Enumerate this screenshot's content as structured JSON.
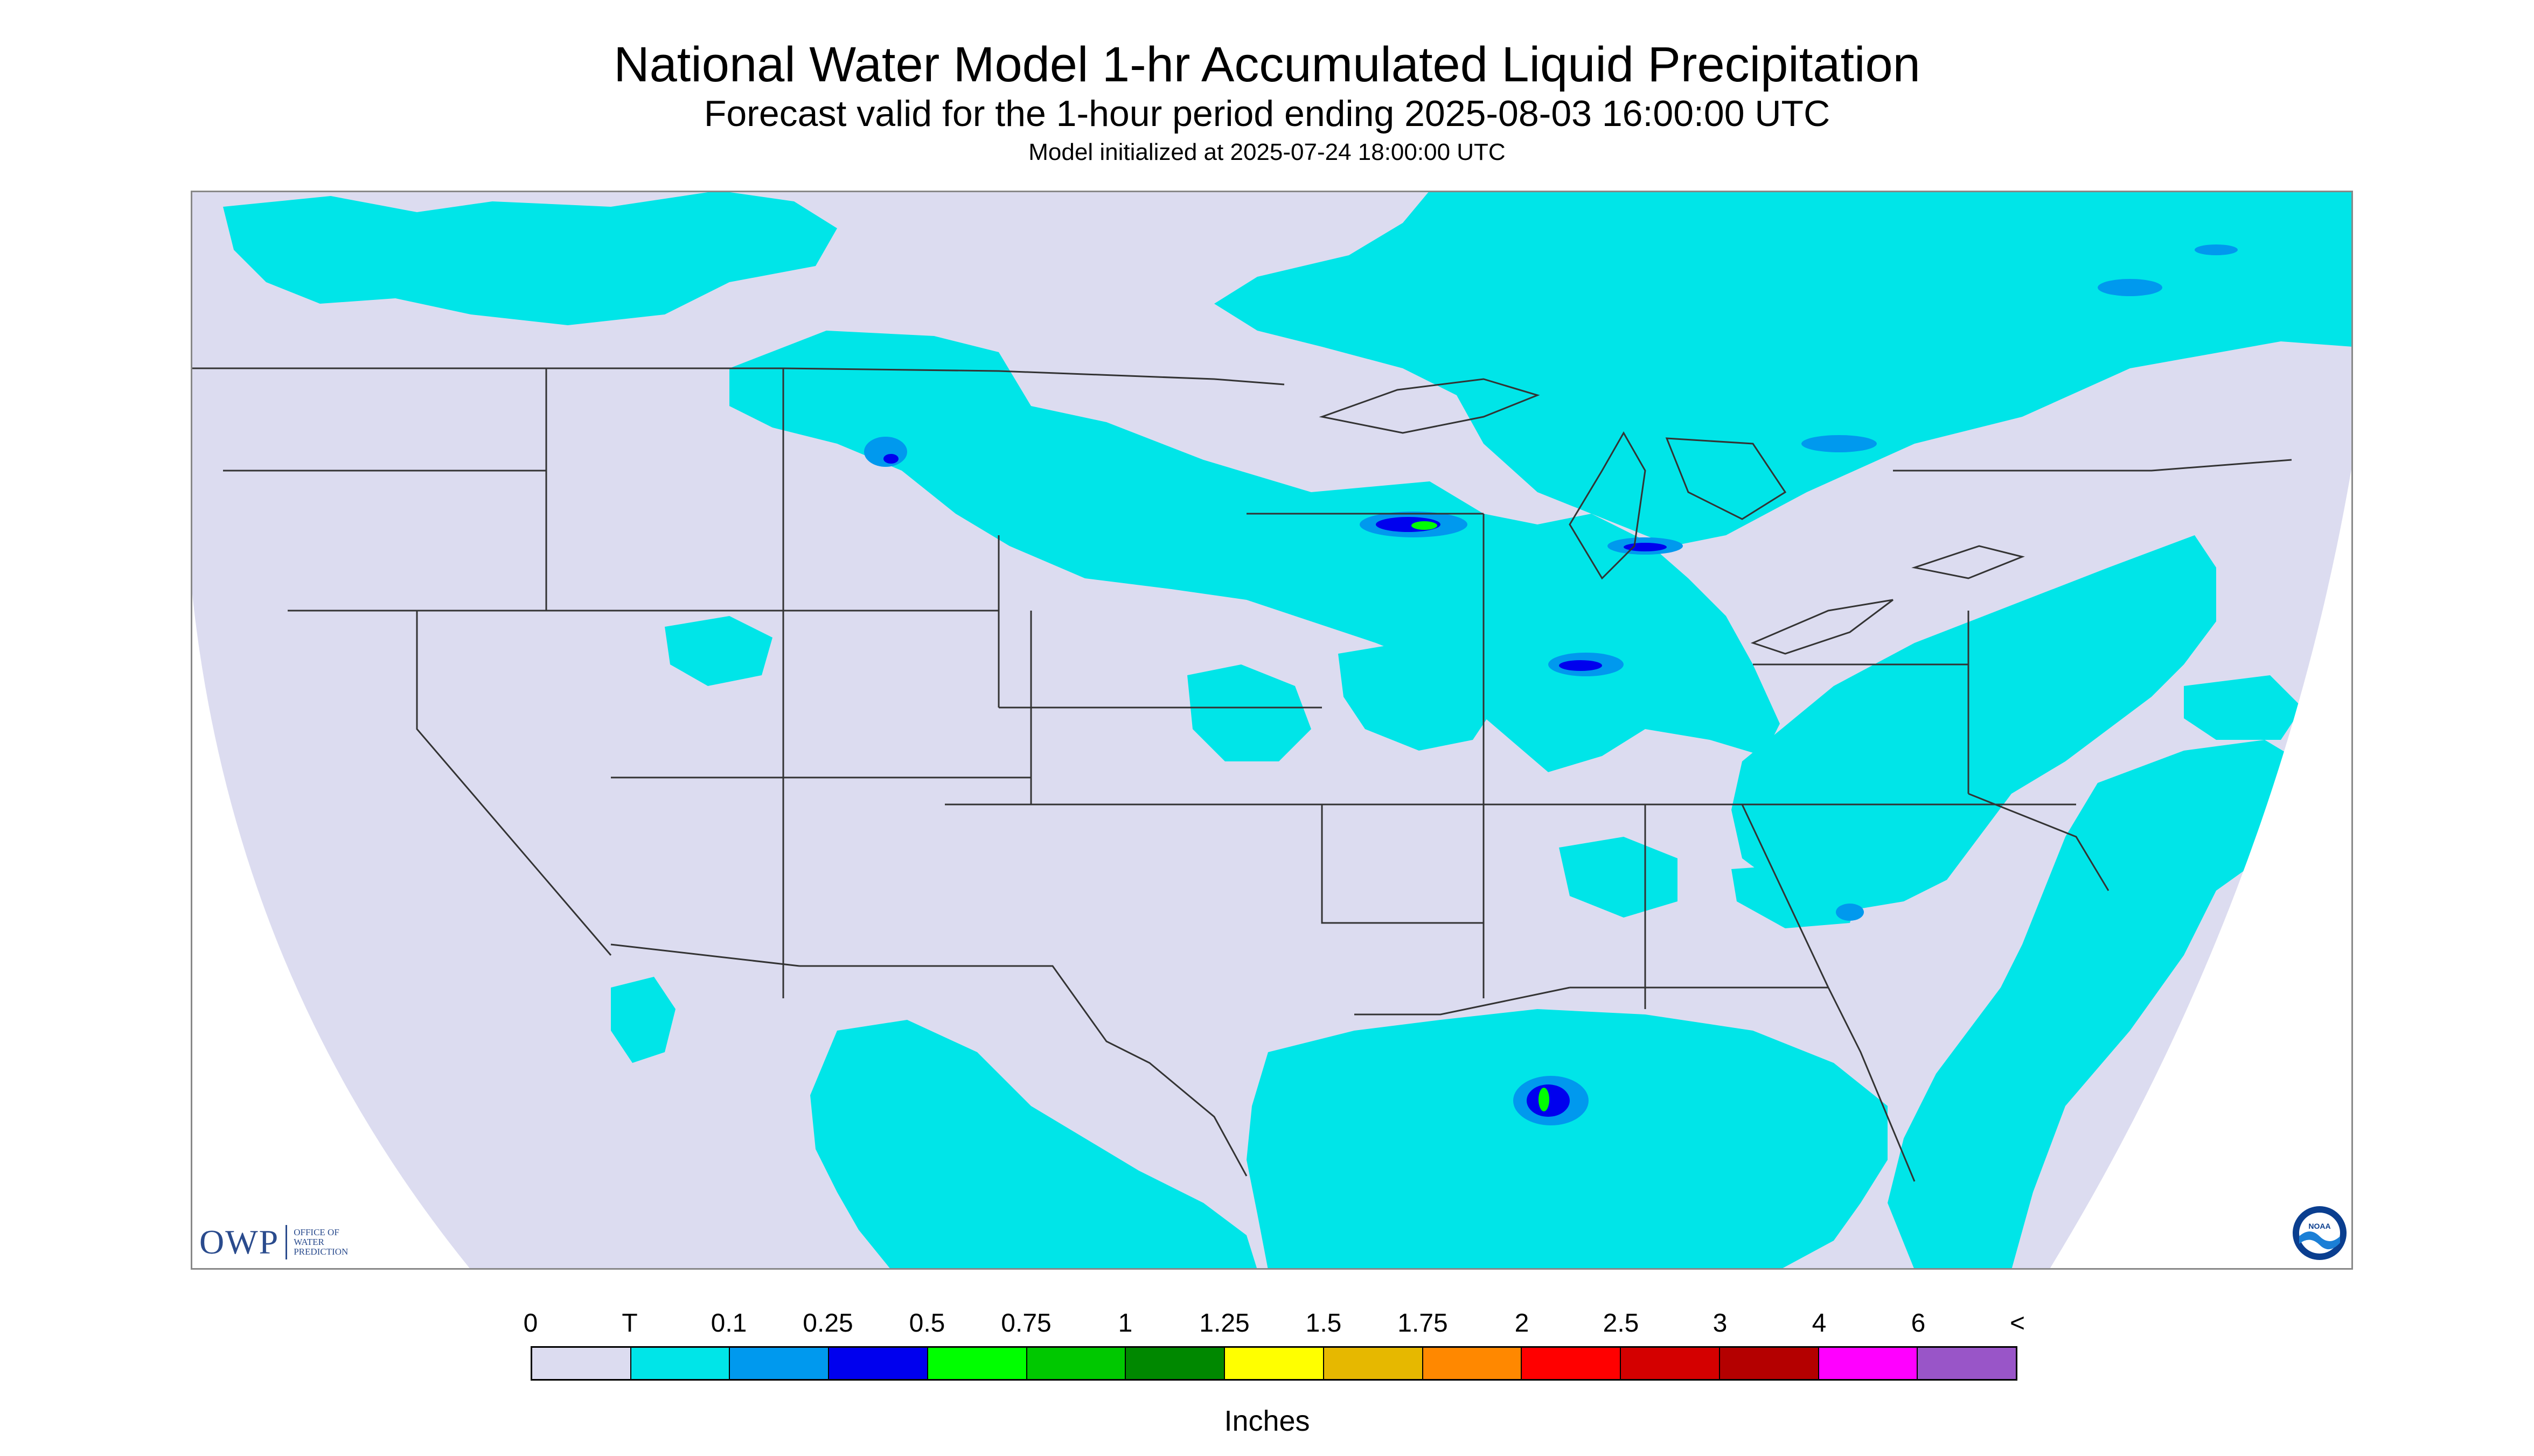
{
  "header": {
    "title": "National Water Model 1-hr Accumulated Liquid Precipitation",
    "subtitle": "Forecast valid for the 1-hour period ending 2025-08-03 16:00:00 UTC",
    "init": "Model initialized at 2025-07-24 18:00:00 UTC"
  },
  "branding": {
    "owp_mark": "OWP",
    "owp_lines": [
      "OFFICE OF",
      "WATER",
      "PREDICTION"
    ],
    "noaa_label": "NOAA"
  },
  "legend": {
    "ticks": [
      "0",
      "T",
      "0.1",
      "0.25",
      "0.5",
      "0.75",
      "1",
      "1.25",
      "1.5",
      "1.75",
      "2",
      "2.5",
      "3",
      "4",
      "6",
      "<"
    ],
    "colors": [
      "#dcdcf0",
      "#00e5e8",
      "#0099ee",
      "#0000ee",
      "#00ff00",
      "#00c800",
      "#008800",
      "#ffff00",
      "#e6b800",
      "#ff8800",
      "#ff0000",
      "#d40000",
      "#b40000",
      "#ff00ff",
      "#9955c8"
    ],
    "units": "Inches"
  },
  "map": {
    "background_color": "#dcdcf0",
    "outside_color": "#ffffff",
    "trace_color": "#00e5e8",
    "light_blue": "#0099ee",
    "blue": "#0000ee",
    "green": "#00ff00",
    "line_color": "#333333"
  }
}
